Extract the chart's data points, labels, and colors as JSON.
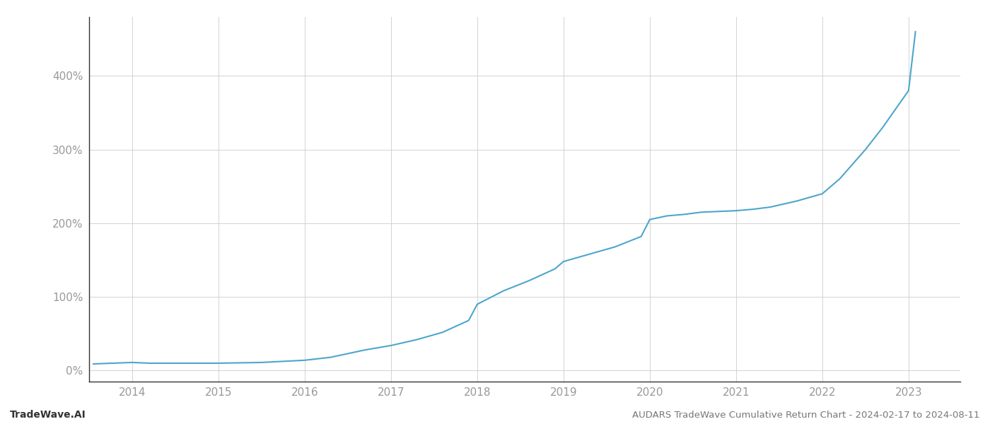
{
  "title": "AUDARS TradeWave Cumulative Return Chart - 2024-02-17 to 2024-08-11",
  "watermark": "TradeWave.AI",
  "line_color": "#4da6cc",
  "background_color": "#ffffff",
  "grid_color": "#cccccc",
  "x_labels": [
    "2014",
    "2015",
    "2016",
    "2017",
    "2018",
    "2019",
    "2020",
    "2021",
    "2022",
    "2023"
  ],
  "y_ticks": [
    0,
    100,
    200,
    300,
    400
  ],
  "y_tick_labels": [
    "0%",
    "100%",
    "200%",
    "300%",
    "400%"
  ],
  "xlim": [
    2013.5,
    2023.6
  ],
  "ylim": [
    -15,
    480
  ],
  "x_values": [
    2013.55,
    2014.0,
    2014.2,
    2014.5,
    2015.0,
    2015.5,
    2016.0,
    2016.3,
    2016.7,
    2017.0,
    2017.3,
    2017.6,
    2017.9,
    2018.0,
    2018.3,
    2018.6,
    2018.9,
    2019.0,
    2019.3,
    2019.6,
    2019.9,
    2020.0,
    2020.2,
    2020.4,
    2020.6,
    2021.0,
    2021.2,
    2021.4,
    2021.7,
    2022.0,
    2022.2,
    2022.5,
    2022.7,
    2023.0,
    2023.08
  ],
  "y_values": [
    9,
    11,
    10,
    10,
    10,
    11,
    14,
    18,
    28,
    34,
    42,
    52,
    68,
    90,
    108,
    122,
    138,
    148,
    158,
    168,
    182,
    205,
    210,
    212,
    215,
    217,
    219,
    222,
    230,
    240,
    260,
    300,
    330,
    380,
    460
  ]
}
